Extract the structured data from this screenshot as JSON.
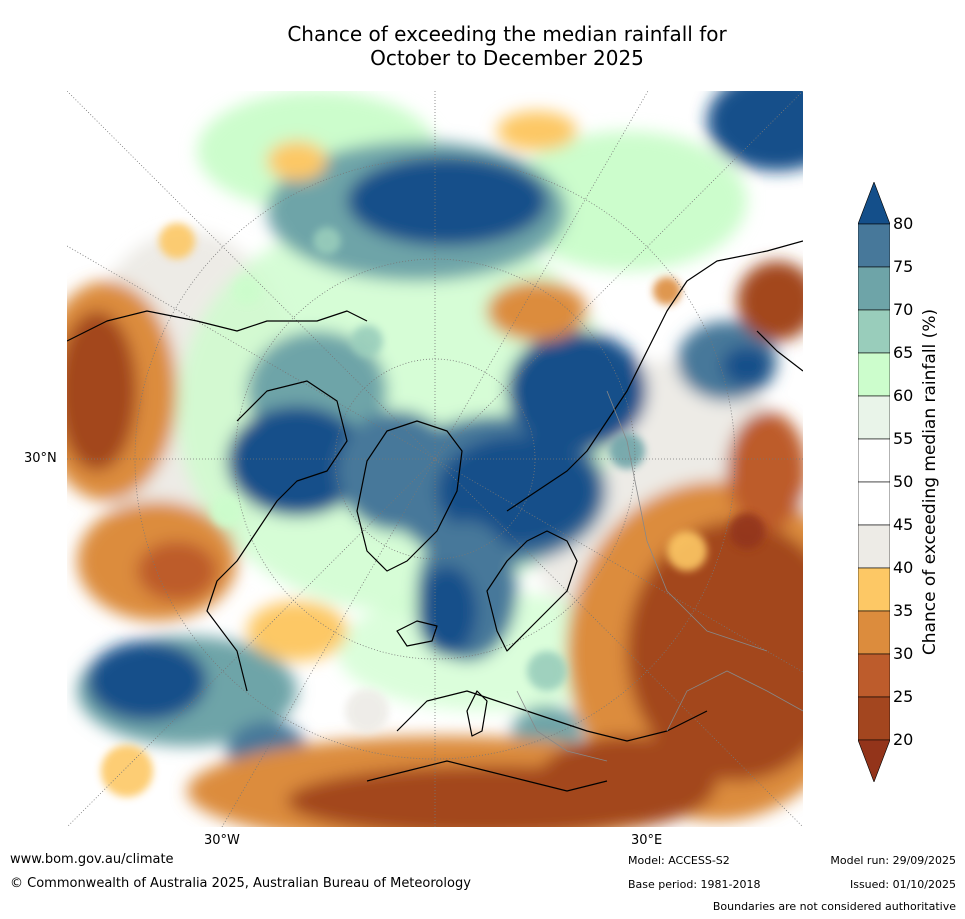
{
  "title": {
    "line1": "Chance of exceeding the median rainfall for",
    "line2": "October to December 2025"
  },
  "map_labels": {
    "lat_30n": "30°N",
    "lon_30w": "30°W",
    "lon_30e": "30°E"
  },
  "colorbar": {
    "label": "Chance of exceeding median rainfall (%)",
    "ticks": [
      "80",
      "75",
      "70",
      "65",
      "60",
      "55",
      "50",
      "45",
      "40",
      "35",
      "30",
      "25",
      "20"
    ],
    "colors_top_to_bottom": [
      "#144f8a",
      "#47789a",
      "#6ea4a8",
      "#99cdbb",
      "#ccfdcc",
      "#e9f4e9",
      "#ffffff",
      "#ffffff",
      "#edebe6",
      "#fdc865",
      "#dc8c3d",
      "#bd5c2c",
      "#a3461f",
      "#93341a"
    ]
  },
  "footer": {
    "url": "www.bom.gov.au/climate",
    "copyright": "© Commonwealth of Australia 2025, Australian Bureau of Meteorology",
    "model": "Model: ACCESS-S2",
    "base_period": "Base period: 1981-2018",
    "model_run": "Model run: 29/09/2025",
    "issued": "Issued: 01/10/2025",
    "disclaimer": "Boundaries are not considered authoritative"
  }
}
